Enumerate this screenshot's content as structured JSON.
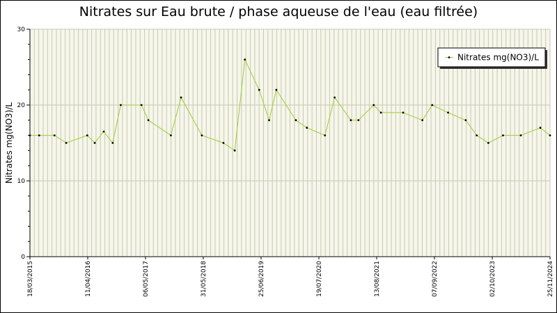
{
  "chart_data": {
    "type": "line",
    "title": "Nitrates sur Eau brute / phase aqueuse de l'eau (eau filtrée)",
    "xlabel": "",
    "ylabel": "Nitrates mg(NO3)/L",
    "ylim": [
      0,
      30
    ],
    "yticks": [
      0,
      10,
      20,
      30
    ],
    "xlim": [
      "2015-03-18",
      "2024-11-25"
    ],
    "xtick_labels": [
      "18/03/2015",
      "11/04/2016",
      "06/05/2017",
      "31/05/2018",
      "25/06/2019",
      "19/07/2020",
      "13/08/2021",
      "07/09/2022",
      "02/10/2023",
      "25/11/2024"
    ],
    "grid": "vertical",
    "legend_position": "top-right",
    "series": [
      {
        "name": "Nitrates mg(NO3)/L",
        "color": "#9acd32",
        "x": [
          "2015-03-18",
          "2015-05-20",
          "2015-09-01",
          "2015-11-20",
          "2016-04-11",
          "2016-06-01",
          "2016-08-01",
          "2016-10-01",
          "2016-11-25",
          "2017-04-15",
          "2017-06-01",
          "2017-11-01",
          "2018-01-10",
          "2018-05-31",
          "2018-10-25",
          "2019-01-10",
          "2019-03-20",
          "2019-06-25",
          "2019-09-01",
          "2019-10-20",
          "2020-03-01",
          "2020-05-15",
          "2020-09-15",
          "2020-11-20",
          "2021-03-10",
          "2021-05-01",
          "2021-08-13",
          "2021-10-01",
          "2022-03-01",
          "2022-07-10",
          "2022-09-15",
          "2023-01-01",
          "2023-05-01",
          "2023-07-15",
          "2023-10-02",
          "2024-01-10",
          "2024-05-10",
          "2024-09-20",
          "2024-11-25"
        ],
        "values": [
          16,
          16,
          16,
          15,
          16,
          15,
          16.5,
          15,
          20,
          20,
          18,
          16,
          21,
          16,
          15,
          14,
          26,
          22,
          18,
          22,
          18,
          17,
          16,
          21,
          18,
          18,
          20,
          19,
          19,
          18,
          20,
          19,
          18,
          16,
          15,
          16,
          16,
          17,
          16
        ]
      }
    ]
  }
}
